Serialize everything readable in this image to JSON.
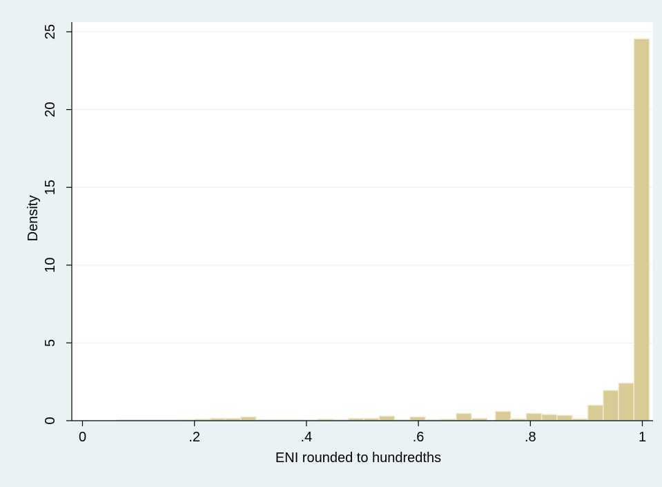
{
  "chart_data": {
    "type": "bar",
    "xlabel": "ENI rounded to hundredths",
    "ylabel": "Density",
    "xlim": [
      0,
      1
    ],
    "ylim": [
      0,
      25
    ],
    "x_ticks": [
      0,
      0.2,
      0.4,
      0.6,
      0.8,
      1
    ],
    "x_tick_labels": [
      "0",
      ".2",
      ".4",
      ".6",
      ".8",
      "1"
    ],
    "y_ticks": [
      0,
      5,
      10,
      15,
      20,
      25
    ],
    "y_tick_labels": [
      "0",
      "5",
      "10",
      "15",
      "20",
      "25"
    ],
    "grid": true,
    "bin_width": 0.0275,
    "bins": [
      {
        "x0": 0.0625,
        "value": 0.05
      },
      {
        "x0": 0.09,
        "value": 0.05
      },
      {
        "x0": 0.1175,
        "value": 0.05
      },
      {
        "x0": 0.145,
        "value": 0.05
      },
      {
        "x0": 0.1725,
        "value": 0.07
      },
      {
        "x0": 0.2,
        "value": 0.1
      },
      {
        "x0": 0.2275,
        "value": 0.15
      },
      {
        "x0": 0.255,
        "value": 0.15
      },
      {
        "x0": 0.2825,
        "value": 0.25
      },
      {
        "x0": 0.31,
        "value": 0.07
      },
      {
        "x0": 0.3375,
        "value": 0.07
      },
      {
        "x0": 0.365,
        "value": 0.07
      },
      {
        "x0": 0.3925,
        "value": 0.05
      },
      {
        "x0": 0.42,
        "value": 0.1
      },
      {
        "x0": 0.4475,
        "value": 0.07
      },
      {
        "x0": 0.475,
        "value": 0.15
      },
      {
        "x0": 0.5025,
        "value": 0.15
      },
      {
        "x0": 0.53,
        "value": 0.3
      },
      {
        "x0": 0.5575,
        "value": 0.07
      },
      {
        "x0": 0.585,
        "value": 0.25
      },
      {
        "x0": 0.6125,
        "value": 0.07
      },
      {
        "x0": 0.64,
        "value": 0.1
      },
      {
        "x0": 0.6675,
        "value": 0.47
      },
      {
        "x0": 0.695,
        "value": 0.15
      },
      {
        "x0": 0.7375,
        "value": 0.6
      },
      {
        "x0": 0.765,
        "value": 0.12
      },
      {
        "x0": 0.7925,
        "value": 0.47
      },
      {
        "x0": 0.82,
        "value": 0.4
      },
      {
        "x0": 0.8475,
        "value": 0.35
      },
      {
        "x0": 0.875,
        "value": 0.12
      },
      {
        "x0": 0.9025,
        "value": 1.0
      },
      {
        "x0": 0.93,
        "value": 1.95
      },
      {
        "x0": 0.9575,
        "value": 2.42
      },
      {
        "x0": 0.985,
        "value": 24.55
      }
    ],
    "colors": {
      "bar_fill": "#d8cb95",
      "bar_stroke": "#f0ecd8",
      "grid": "#eaf2f3",
      "plot_background": "#ffffff",
      "page_background": "#eaf2f3"
    }
  }
}
